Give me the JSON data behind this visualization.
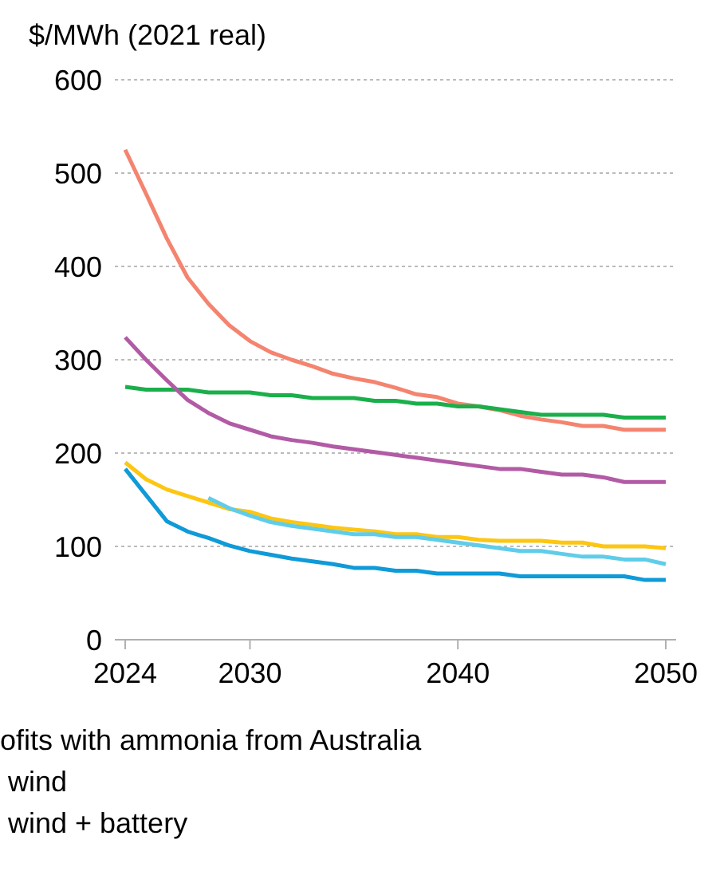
{
  "chart_data": {
    "type": "line",
    "ylabel": "$/MWh (2021 real)",
    "x": [
      2024,
      2025,
      2026,
      2027,
      2028,
      2029,
      2030,
      2031,
      2032,
      2033,
      2034,
      2035,
      2036,
      2037,
      2038,
      2039,
      2040,
      2041,
      2042,
      2043,
      2044,
      2045,
      2046,
      2047,
      2048,
      2049,
      2050
    ],
    "series": [
      {
        "color": "#f4846f",
        "values": [
          525,
          478,
          430,
          388,
          360,
          337,
          320,
          308,
          300,
          293,
          285,
          280,
          276,
          270,
          263,
          260,
          253,
          250,
          246,
          240,
          236,
          233,
          229,
          229,
          225,
          225,
          225
        ]
      },
      {
        "color": "#1aaf4b",
        "values": [
          271,
          268,
          268,
          268,
          265,
          265,
          265,
          262,
          262,
          259,
          259,
          259,
          256,
          256,
          253,
          253,
          250,
          250,
          247,
          244,
          241,
          241,
          241,
          241,
          238,
          238,
          238
        ]
      },
      {
        "color": "#b25ba5",
        "values": [
          324,
          300,
          278,
          257,
          243,
          232,
          225,
          218,
          214,
          211,
          207,
          204,
          201,
          198,
          195,
          192,
          189,
          186,
          183,
          183,
          180,
          177,
          177,
          174,
          169,
          169,
          169
        ]
      },
      {
        "color": "#fdc612",
        "values": [
          190,
          172,
          161,
          154,
          147,
          140,
          137,
          130,
          126,
          123,
          120,
          118,
          116,
          113,
          113,
          110,
          110,
          107,
          106,
          106,
          106,
          104,
          104,
          100,
          100,
          100,
          98
        ]
      },
      {
        "color": "#5fcdea",
        "values": [
          null,
          null,
          null,
          null,
          152,
          141,
          133,
          126,
          122,
          119,
          116,
          113,
          113,
          110,
          110,
          107,
          104,
          101,
          98,
          95,
          95,
          92,
          89,
          89,
          86,
          86,
          81
        ]
      },
      {
        "color": "#0f9ad8",
        "values": [
          183,
          155,
          127,
          116,
          109,
          101,
          95,
          91,
          87,
          84,
          81,
          77,
          77,
          74,
          74,
          71,
          71,
          71,
          71,
          68,
          68,
          68,
          68,
          68,
          68,
          64,
          64
        ]
      }
    ],
    "xlim": [
      2023.5,
      2050.5
    ],
    "xticks": [
      2024,
      2030,
      2040,
      2050
    ],
    "ylim": [
      0,
      600
    ],
    "yticks": [
      0,
      100,
      200,
      300,
      400,
      500,
      600
    ],
    "grid": "y",
    "legend": false,
    "marker": "none",
    "line_style": "solid",
    "annotations": [
      "ofits with ammonia from Australia",
      " wind",
      " wind + battery"
    ]
  }
}
